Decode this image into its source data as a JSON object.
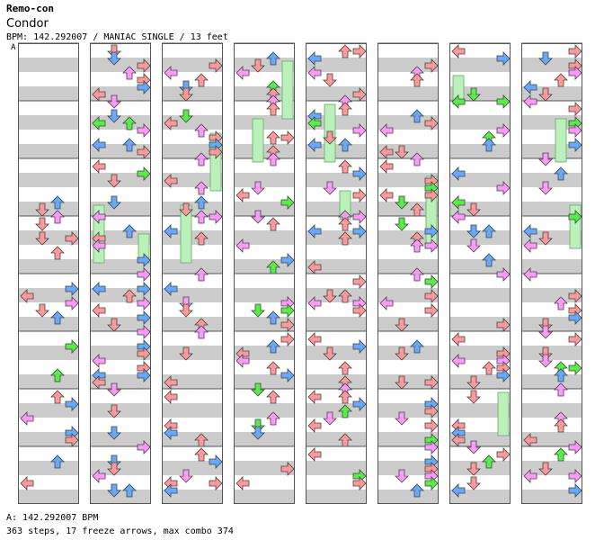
{
  "song": {
    "artist": "Remo-con",
    "title": "Condor",
    "info": "BPM: 142.292007 / MANIAC SINGLE / 13 feet"
  },
  "bpm_marker": "A",
  "footer": {
    "bpm_line": "A: 142.292007 BPM",
    "stats_line": "363 steps, 17 freeze arrows, max combo 374"
  },
  "colors": {
    "stripe": "#cccccc",
    "lane_bg": "#ffffff",
    "border": "#555555",
    "quarter": "#ff9999",
    "eighth": "#66aaff",
    "sixteenth": "#ff99ff",
    "green": "#55ee44",
    "freeze": "#bbf0bb"
  },
  "chart_data": {
    "type": "step-chart",
    "columns": 8,
    "measures_per_column": 8,
    "lanes": [
      "left",
      "down",
      "up",
      "right"
    ],
    "freeze_arrows": 17,
    "steps": 363,
    "max_combo": 374
  }
}
